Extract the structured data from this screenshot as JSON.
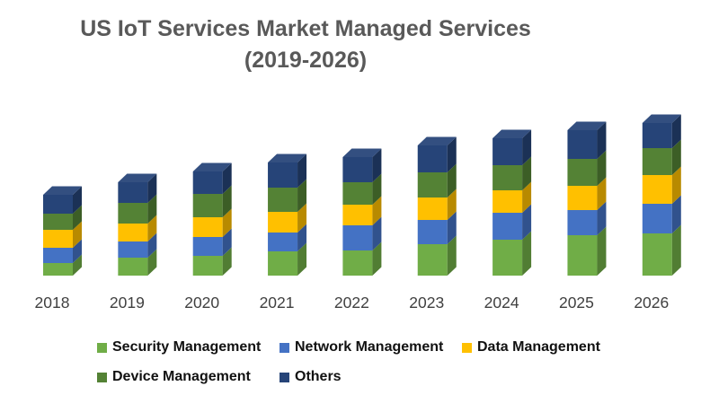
{
  "title": {
    "line1": "US IoT Services Market Managed Services",
    "line2": "(2019-2026)"
  },
  "chart_data": {
    "type": "bar",
    "stacked": true,
    "style": "3d-column",
    "title": "US IoT Services Market Managed Services (2019-2026)",
    "xlabel": "",
    "ylabel": "",
    "grid": false,
    "y_axis_shown": false,
    "legend_position": "bottom",
    "categories": [
      "2018",
      "2019",
      "2020",
      "2021",
      "2022",
      "2023",
      "2024",
      "2025",
      "2026"
    ],
    "series": [
      {
        "name": "Security Management",
        "color": "#70AD47",
        "values": [
          14,
          20,
          22,
          27,
          28,
          35,
          40,
          45,
          47
        ]
      },
      {
        "name": "Network Management",
        "color": "#4472C4",
        "values": [
          17,
          18,
          21,
          21,
          28,
          27,
          30,
          28,
          33
        ]
      },
      {
        "name": "Data Management",
        "color": "#FFC000",
        "values": [
          20,
          20,
          22,
          23,
          23,
          25,
          25,
          27,
          32
        ]
      },
      {
        "name": "Device Management",
        "color": "#548235",
        "values": [
          18,
          23,
          26,
          27,
          25,
          28,
          28,
          30,
          30
        ]
      },
      {
        "name": "Others",
        "color": "#264478",
        "values": [
          21,
          23,
          25,
          28,
          28,
          30,
          30,
          32,
          28
        ]
      }
    ],
    "value_note": "relative heights; no y-axis values shown in chart"
  },
  "legend": {
    "items": [
      {
        "label": "Security Management",
        "color": "#70AD47"
      },
      {
        "label": "Network Management",
        "color": "#4472C4"
      },
      {
        "label": "Data Management",
        "color": "#FFC000"
      },
      {
        "label": "Device Management",
        "color": "#548235"
      },
      {
        "label": "Others",
        "color": "#264478"
      }
    ]
  }
}
